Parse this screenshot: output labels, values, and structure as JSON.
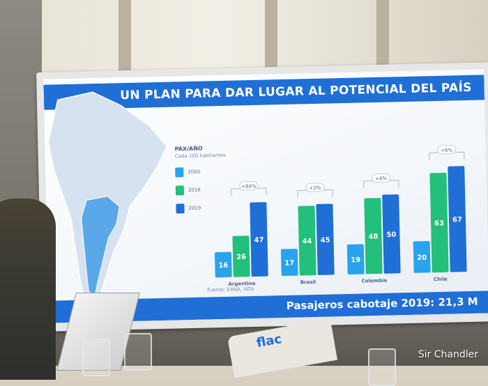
{
  "slide": {
    "title": "UN PLAN PARA DAR LUGAR AL POTENCIAL DEL PAÍS",
    "footer": "Pasajeros cabotaje 2019:  21,3 M",
    "source": "Fuente: EANA, IATA"
  },
  "legend": {
    "title": "PAX/AÑO",
    "subtitle": "Cada 100 habitantes",
    "items": [
      {
        "label": "2000",
        "color": "#29a3ec"
      },
      {
        "label": "2016",
        "color": "#22c07a"
      },
      {
        "label": "2019",
        "color": "#1f6fd6"
      }
    ]
  },
  "chart_data": {
    "type": "bar",
    "categories": [
      "Argentina",
      "Brasil",
      "Colombia",
      "Chile"
    ],
    "series": [
      {
        "name": "2000",
        "values": [
          16,
          17,
          19,
          20
        ],
        "color": "#29a3ec"
      },
      {
        "name": "2016",
        "values": [
          26,
          44,
          48,
          63
        ],
        "color": "#22c07a"
      },
      {
        "name": "2019",
        "values": [
          47,
          45,
          50,
          67
        ],
        "color": "#1f6fd6"
      }
    ],
    "annotations": [
      "+84%",
      "+2%",
      "+4%",
      "+6%"
    ],
    "ylim": [
      0,
      75
    ]
  },
  "watermark": "Sir Chandler",
  "bag_text": "flac"
}
